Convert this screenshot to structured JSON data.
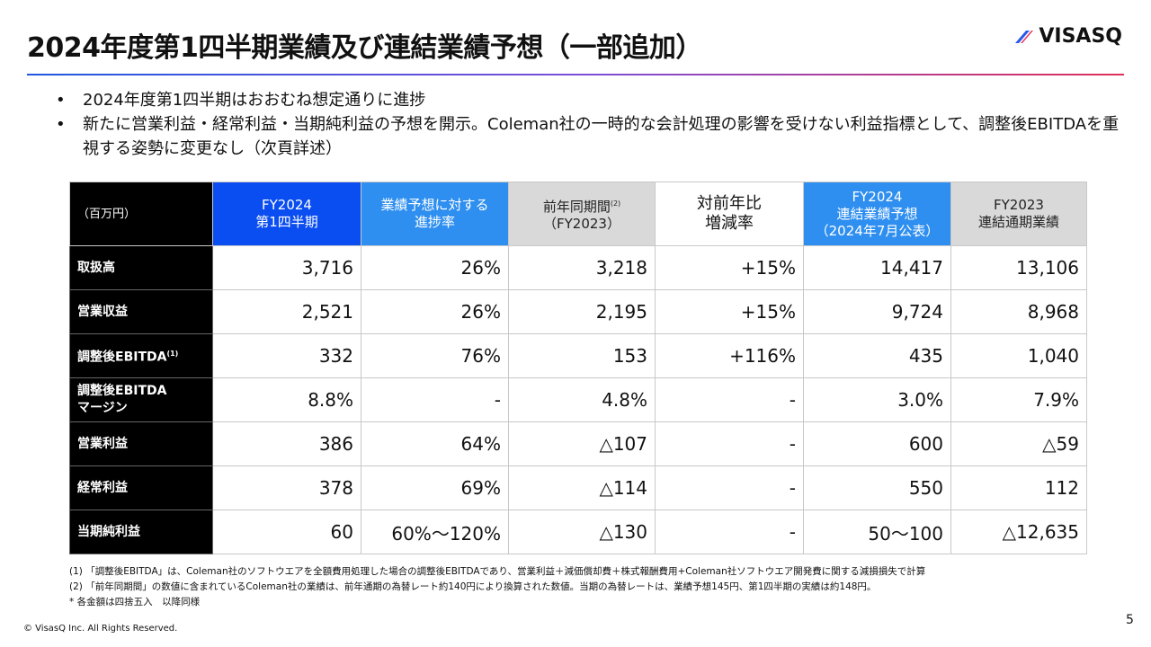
{
  "header": {
    "title": "2024年度第1四半期業績及び連結業績予想（一部追加）",
    "logo": "VISASQ"
  },
  "bullets": [
    "2024年度第1四半期はおおむね想定通りに進捗",
    "新たに営業利益・経常利益・当期純利益の予想を開示。Coleman社の一時的な会計処理の影響を受けない利益指標として、調整後EBITDAを重視する姿勢に変更なし（次頁詳述）"
  ],
  "table": {
    "corner": "（百万円）",
    "columns": [
      {
        "lines": [
          "FY2024",
          "第1四半期"
        ]
      },
      {
        "lines": [
          "業績予想に対する",
          "進捗率"
        ]
      },
      {
        "lines": [
          "前年同期間",
          "（FY2023）"
        ],
        "note": "(2)"
      },
      {
        "lines": [
          "対前年比",
          "増減率"
        ]
      },
      {
        "lines": [
          "FY2024",
          "連結業績予想",
          "（2024年7月公表）"
        ]
      },
      {
        "lines": [
          "FY2023",
          "連結通期業績"
        ]
      }
    ],
    "rows": [
      {
        "lines": [
          "取扱高"
        ],
        "cells": [
          "3,716",
          "26%",
          "3,218",
          "+15%",
          "14,417",
          "13,106"
        ]
      },
      {
        "lines": [
          "営業収益"
        ],
        "cells": [
          "2,521",
          "26%",
          "2,195",
          "+15%",
          "9,724",
          "8,968"
        ]
      },
      {
        "lines": [
          "調整後EBITDA"
        ],
        "note": "(1)",
        "cells": [
          "332",
          "76%",
          "153",
          "+116%",
          "435",
          "1,040"
        ]
      },
      {
        "lines": [
          "調整後EBITDA",
          "マージン"
        ],
        "cells": [
          "8.8%",
          "-",
          "4.8%",
          "-",
          "3.0%",
          "7.9%"
        ]
      },
      {
        "lines": [
          "営業利益"
        ],
        "cells": [
          "386",
          "64%",
          "△107",
          "-",
          "600",
          "△59"
        ]
      },
      {
        "lines": [
          "経常利益"
        ],
        "cells": [
          "378",
          "69%",
          "△114",
          "-",
          "550",
          "112"
        ]
      },
      {
        "lines": [
          "当期純利益"
        ],
        "cells": [
          "60",
          "60%～120%",
          "△130",
          "-",
          "50～100",
          "△12,635"
        ]
      }
    ]
  },
  "footnotes": [
    "(1) 「調整後EBITDA」は、Coleman社のソフトウエアを全額費用処理した場合の調整後EBITDAであり、営業利益＋減価償却費＋株式報酬費用+Coleman社ソフトウエア開発費に関する減損損失で計算",
    "(2) 「前年同期間」の数値に含まれているColeman社の業績は、前年通期の為替レート約140円により換算された数値。当期の為替レートは、業績予想145円、第1四半期の実績は約148円。",
    "* 各金額は四捨五入　以降同様"
  ],
  "copyright": "© VisasQ Inc. All Rights Reserved.",
  "page": "5"
}
